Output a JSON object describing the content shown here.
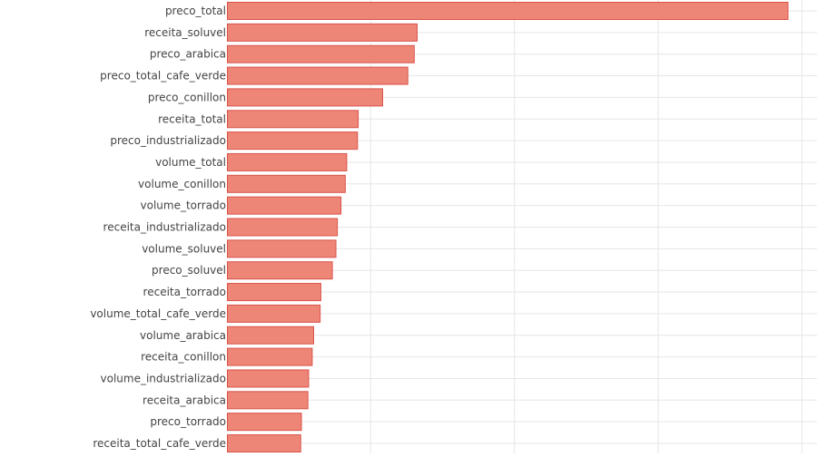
{
  "chart_data": {
    "type": "bar",
    "orientation": "horizontal",
    "categories": [
      "preco_total",
      "receita_soluvel",
      "preco_arabica",
      "preco_total_cafe_verde",
      "preco_conillon",
      "receita_total",
      "preco_industrializado",
      "volume_total",
      "volume_conillon",
      "volume_torrado",
      "receita_industrializado",
      "volume_soluvel",
      "preco_soluvel",
      "receita_torrado",
      "volume_total_cafe_verde",
      "volume_arabica",
      "receita_conillon",
      "volume_industrializado",
      "receita_arabica",
      "preco_torrado",
      "receita_total_cafe_verde"
    ],
    "values": [
      0.39,
      0.132,
      0.13,
      0.1255,
      0.108,
      0.091,
      0.0905,
      0.083,
      0.082,
      0.079,
      0.0765,
      0.0755,
      0.073,
      0.065,
      0.0645,
      0.06,
      0.059,
      0.0565,
      0.056,
      0.0515,
      0.051
    ],
    "xlim": [
      0,
      0.41
    ],
    "x_gridlines": [
      0.1,
      0.2,
      0.3,
      0.4
    ],
    "grid": true,
    "bar_color": "#ee8677",
    "bar_edge_color": "#d9534a",
    "grid_color": "#e6e6e6",
    "label_color": "#444444"
  }
}
